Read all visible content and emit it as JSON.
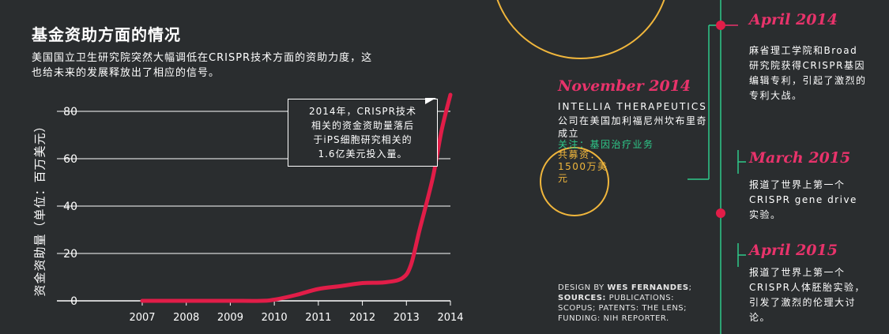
{
  "header": {
    "title": "基金资助方面的情况",
    "subtitle": "美国国立卫生研究院突然大幅调低在CRISPR技术方面的资助力度，这也给未来的发展释放出了相应的信号。"
  },
  "chart_data": {
    "type": "line",
    "ylabel": "资金资助量（单位：百万美元）",
    "xlabel": "",
    "x_ticks": [
      "2007",
      "2008",
      "2009",
      "2010",
      "2011",
      "2012",
      "2013",
      "2014"
    ],
    "y_ticks": [
      0,
      20,
      40,
      60,
      80
    ],
    "xlim": [
      2007,
      2014
    ],
    "ylim": [
      0,
      80
    ],
    "grid": "horizontal",
    "series": [
      {
        "x": [
          2007,
          2008,
          2009,
          2009.7,
          2010,
          2010.5,
          2011,
          2011.5,
          2012,
          2012.5,
          2012.9,
          2013.1,
          2013.3,
          2013.6,
          2013.8,
          2014
        ],
        "y": [
          0,
          0,
          0,
          0,
          0.5,
          2.5,
          5,
          6.2,
          7.5,
          7.8,
          9.5,
          15,
          30,
          52,
          72,
          87
        ],
        "color": "#e11d48"
      }
    ],
    "annotations": [
      {
        "text_lines": [
          "2014年，CRISPR技术",
          "相关的资金资助量落后",
          "于iPS细胞研究相关的",
          "1.6亿美元投入量。"
        ]
      }
    ]
  },
  "timeline": {
    "november_2014": {
      "date": "November 2014",
      "company": "INTELLIA THERAPEUTICS",
      "description": "公司在美国加利福尼州坎布里奇成立",
      "focus": "关注：基因治疗业务",
      "funding": "共募资：1500万美元"
    },
    "events": [
      {
        "date": "April 2014",
        "description": "麻省理工学院和Broad研究院获得CRISPR基因编辑专利，引起了激烈的专利大战。"
      },
      {
        "date": "March 2015",
        "description": "报道了世界上第一个CRISPR gene drive实验。"
      },
      {
        "date": "April 2015",
        "description": "报道了世界上第一个CRISPR人体胚胎实验，引发了激烈的伦理大讨论。"
      }
    ]
  },
  "credits": {
    "design_label": "DESIGN BY",
    "designer": "WES FERNANDES",
    "sources_label": "SOURCES:",
    "sources": "PUBLICATIONS: SCOPUS; PATENTS: THE LENS; FUNDING: NIH REPORTER."
  },
  "colors": {
    "background": "#2a2d2f",
    "line": "#e11d48",
    "accent_pink": "#e8336b",
    "accent_yellow": "#f0b63c",
    "accent_green": "#2ec98a"
  }
}
